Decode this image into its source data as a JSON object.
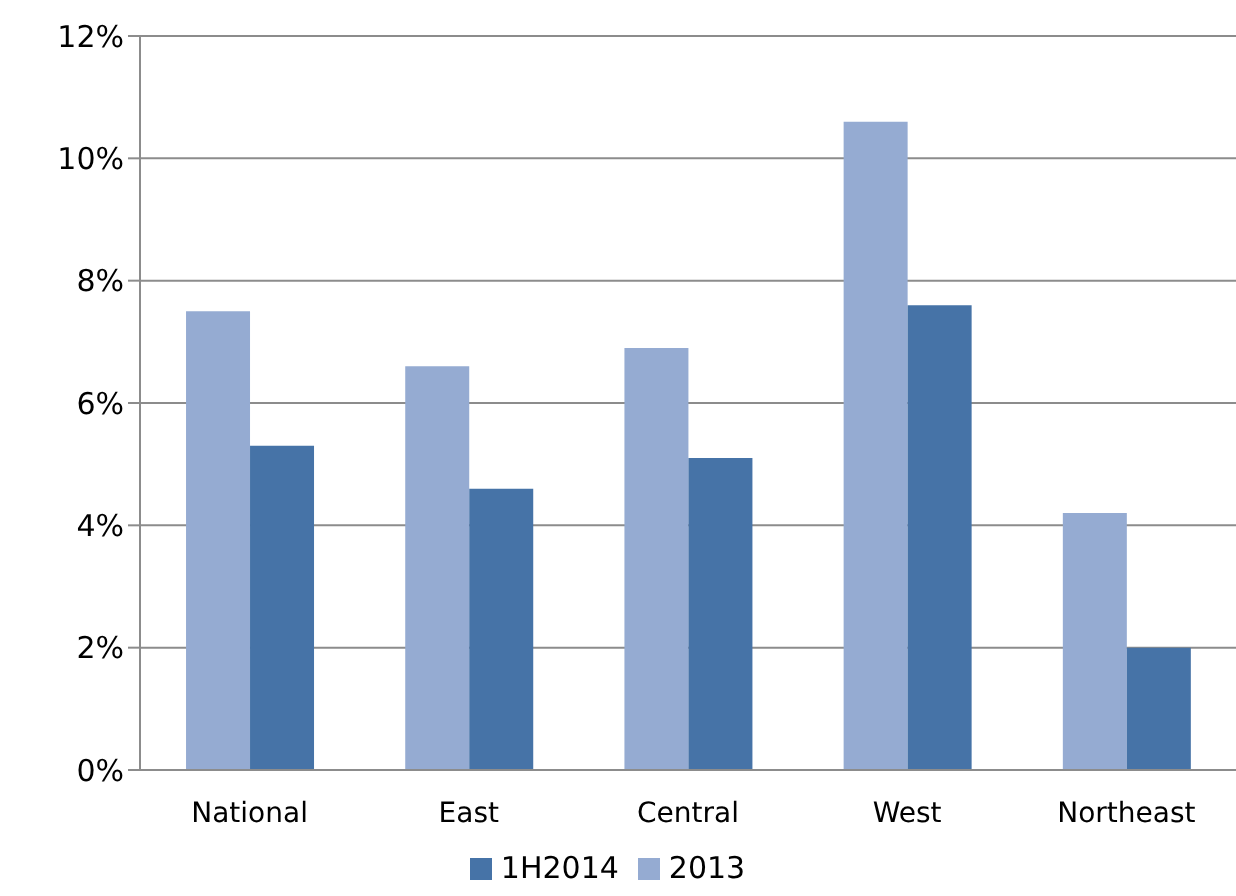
{
  "chart_data": {
    "type": "bar",
    "categories": [
      "National",
      "East",
      "Central",
      "West",
      "Northeast"
    ],
    "series": [
      {
        "name": "2013",
        "color": "#95abd2",
        "values": [
          7.5,
          6.6,
          6.9,
          10.6,
          4.2
        ]
      },
      {
        "name": "1H2014",
        "color": "#4673a7",
        "values": [
          5.3,
          4.6,
          5.1,
          7.6,
          2.0
        ]
      }
    ],
    "ylim": [
      0,
      12
    ],
    "yticks": [
      {
        "value": 0,
        "label": "0%"
      },
      {
        "value": 2,
        "label": "2%"
      },
      {
        "value": 4,
        "label": "4%"
      },
      {
        "value": 6,
        "label": "6%"
      },
      {
        "value": 8,
        "label": "8%"
      },
      {
        "value": 10,
        "label": "10%"
      },
      {
        "value": 12,
        "label": "12%"
      }
    ],
    "grid": "y",
    "legend": "bottom"
  }
}
